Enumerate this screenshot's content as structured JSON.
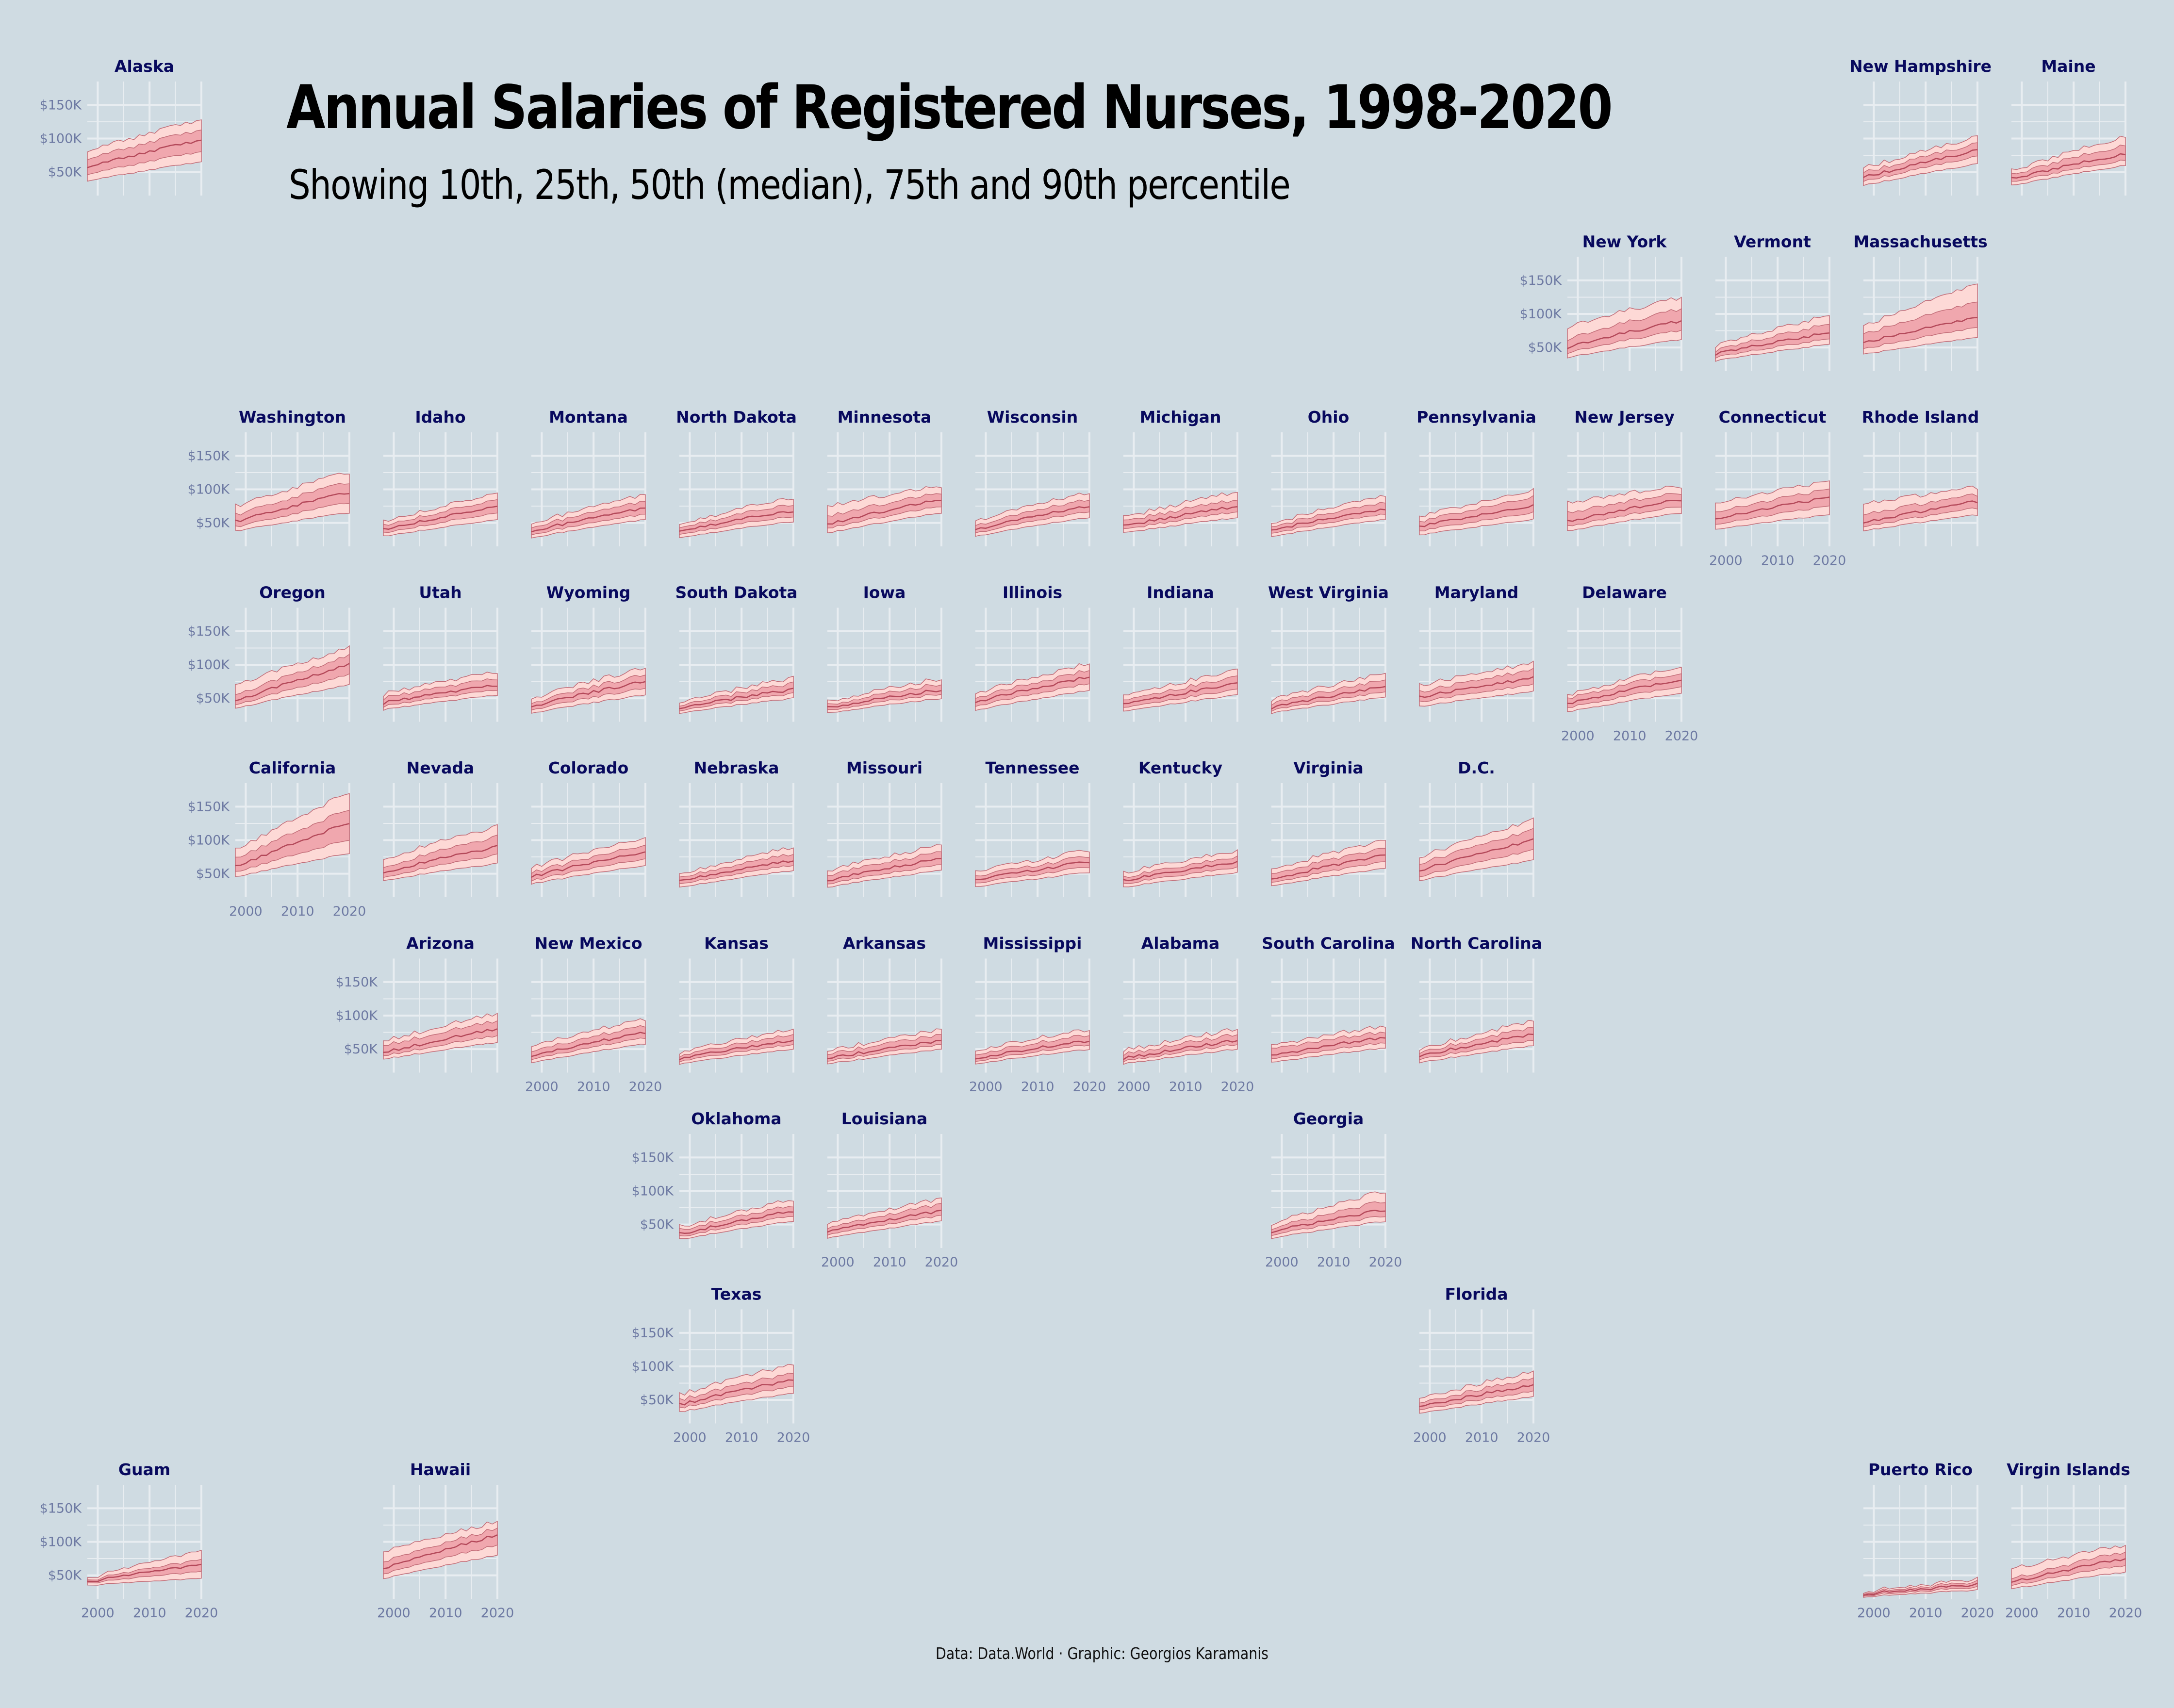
{
  "title": "Annual Salaries of Registered Nurses, 1998-2020",
  "subtitle": "Showing 10th, 25th, 50th (median), 75th and 90th percentile",
  "caption": "Data: Data.World · Graphic: Georgios Karamanis",
  "colors": {
    "background": "#cfdbe2",
    "outer_band": "#fdd9d6",
    "inner_band": "#f0a7ae",
    "band_outline": "#c26d78",
    "median_line": "#b4495a",
    "grid": "#e8edf1",
    "title_text": "#000000",
    "state_label": "#08095e",
    "tick_label": "#6e7aa3"
  },
  "chart_data": {
    "type": "area",
    "layout": "small multiples arranged as a tile map of US states and territories",
    "x_range": [
      1998,
      2020
    ],
    "y_range": [
      15000,
      185000
    ],
    "x_ticks": [
      2000,
      2010,
      2020
    ],
    "x_tick_labels": [
      "2000",
      "2010",
      "2020"
    ],
    "y_ticks": [
      50000,
      100000,
      150000
    ],
    "y_tick_labels": [
      "$50K",
      "$100K",
      "$150K"
    ],
    "grid": true,
    "series_order": [
      "p10",
      "p25",
      "p50",
      "p75",
      "p90"
    ],
    "panels": [
      {
        "state": "Alaska",
        "col": 0,
        "row": 0,
        "show_y": true,
        "show_x": false,
        "start": [
          37,
          47,
          58,
          70,
          82
        ],
        "end": [
          65,
          80,
          97,
          112,
          127
        ]
      },
      {
        "state": "New Hampshire",
        "col": 12,
        "row": 0,
        "show_y": false,
        "show_x": false,
        "start": [
          30,
          36,
          42,
          49,
          56
        ],
        "end": [
          62,
          73,
          82,
          92,
          102
        ]
      },
      {
        "state": "Maine",
        "col": 13,
        "row": 0,
        "show_y": false,
        "show_x": false,
        "start": [
          30,
          35,
          40,
          46,
          52
        ],
        "end": [
          60,
          68,
          77,
          90,
          103
        ]
      },
      {
        "state": "New York",
        "col": 10,
        "row": 1,
        "show_y": true,
        "show_x": false,
        "start": [
          35,
          42,
          50,
          62,
          80
        ],
        "end": [
          62,
          76,
          90,
          108,
          125
        ]
      },
      {
        "state": "Vermont",
        "col": 11,
        "row": 1,
        "show_y": false,
        "show_x": false,
        "start": [
          30,
          35,
          40,
          45,
          52
        ],
        "end": [
          55,
          63,
          72,
          85,
          98
        ]
      },
      {
        "state": "Massachusetts",
        "col": 12,
        "row": 1,
        "show_y": false,
        "show_x": false,
        "start": [
          40,
          48,
          57,
          70,
          82
        ],
        "end": [
          65,
          80,
          95,
          118,
          145
        ]
      },
      {
        "state": "Washington",
        "col": 1,
        "row": 2,
        "show_y": true,
        "show_x": false,
        "start": [
          38,
          44,
          52,
          62,
          75
        ],
        "end": [
          65,
          80,
          95,
          110,
          125
        ]
      },
      {
        "state": "Idaho",
        "col": 2,
        "row": 2,
        "show_y": false,
        "show_x": false,
        "start": [
          30,
          35,
          40,
          46,
          52
        ],
        "end": [
          55,
          65,
          75,
          85,
          95
        ]
      },
      {
        "state": "Montana",
        "col": 3,
        "row": 2,
        "show_y": false,
        "show_x": false,
        "start": [
          28,
          33,
          38,
          44,
          50
        ],
        "end": [
          55,
          63,
          72,
          82,
          92
        ]
      },
      {
        "state": "North Dakota",
        "col": 4,
        "row": 2,
        "show_y": false,
        "show_x": false,
        "start": [
          28,
          33,
          38,
          43,
          48
        ],
        "end": [
          52,
          60,
          68,
          78,
          88
        ]
      },
      {
        "state": "Minnesota",
        "col": 5,
        "row": 2,
        "show_y": false,
        "show_x": false,
        "start": [
          35,
          42,
          48,
          60,
          75
        ],
        "end": [
          65,
          75,
          85,
          95,
          105
        ]
      },
      {
        "state": "Wisconsin",
        "col": 6,
        "row": 2,
        "show_y": false,
        "show_x": false,
        "start": [
          30,
          35,
          40,
          46,
          53
        ],
        "end": [
          58,
          67,
          75,
          85,
          95
        ]
      },
      {
        "state": "Michigan",
        "col": 7,
        "row": 2,
        "show_y": false,
        "show_x": false,
        "start": [
          35,
          40,
          45,
          52,
          58
        ],
        "end": [
          58,
          67,
          75,
          85,
          97
        ]
      },
      {
        "state": "Ohio",
        "col": 8,
        "row": 2,
        "show_y": false,
        "show_x": false,
        "start": [
          30,
          35,
          40,
          45,
          50
        ],
        "end": [
          55,
          63,
          70,
          80,
          90
        ]
      },
      {
        "state": "Pennsylvania",
        "col": 9,
        "row": 2,
        "show_y": false,
        "show_x": false,
        "start": [
          32,
          38,
          45,
          52,
          60
        ],
        "end": [
          55,
          65,
          75,
          88,
          98
        ]
      },
      {
        "state": "New Jersey",
        "col": 10,
        "row": 2,
        "show_y": false,
        "show_x": false,
        "start": [
          38,
          45,
          52,
          65,
          80
        ],
        "end": [
          65,
          75,
          85,
          95,
          105
        ]
      },
      {
        "state": "Connecticut",
        "col": 11,
        "row": 2,
        "show_y": false,
        "show_x": true,
        "start": [
          40,
          47,
          55,
          65,
          78
        ],
        "end": [
          62,
          75,
          88,
          100,
          112
        ]
      },
      {
        "state": "Rhode Island",
        "col": 12,
        "row": 2,
        "show_y": false,
        "show_x": false,
        "start": [
          38,
          44,
          50,
          62,
          78
        ],
        "end": [
          62,
          72,
          82,
          92,
          103
        ]
      },
      {
        "state": "Oregon",
        "col": 1,
        "row": 3,
        "show_y": true,
        "show_x": false,
        "start": [
          35,
          40,
          46,
          55,
          70
        ],
        "end": [
          70,
          85,
          100,
          113,
          125
        ]
      },
      {
        "state": "Utah",
        "col": 2,
        "row": 3,
        "show_y": false,
        "show_x": false,
        "start": [
          33,
          38,
          43,
          50,
          56
        ],
        "end": [
          55,
          63,
          70,
          80,
          90
        ]
      },
      {
        "state": "Wyoming",
        "col": 3,
        "row": 3,
        "show_y": false,
        "show_x": false,
        "start": [
          28,
          33,
          38,
          43,
          50
        ],
        "end": [
          55,
          65,
          75,
          85,
          95
        ]
      },
      {
        "state": "South Dakota",
        "col": 4,
        "row": 3,
        "show_y": false,
        "show_x": false,
        "start": [
          28,
          32,
          36,
          40,
          45
        ],
        "end": [
          50,
          57,
          63,
          72,
          80
        ]
      },
      {
        "state": "Iowa",
        "col": 5,
        "row": 3,
        "show_y": false,
        "show_x": false,
        "start": [
          28,
          32,
          36,
          40,
          45
        ],
        "end": [
          50,
          57,
          63,
          72,
          80
        ]
      },
      {
        "state": "Illinois",
        "col": 6,
        "row": 3,
        "show_y": false,
        "show_x": false,
        "start": [
          32,
          38,
          44,
          50,
          57
        ],
        "end": [
          62,
          72,
          82,
          92,
          102
        ]
      },
      {
        "state": "Indiana",
        "col": 7,
        "row": 3,
        "show_y": false,
        "show_x": false,
        "start": [
          30,
          35,
          40,
          45,
          52
        ],
        "end": [
          55,
          63,
          72,
          82,
          92
        ]
      },
      {
        "state": "West Virginia",
        "col": 8,
        "row": 3,
        "show_y": false,
        "show_x": false,
        "start": [
          28,
          32,
          36,
          42,
          48
        ],
        "end": [
          52,
          60,
          68,
          78,
          88
        ]
      },
      {
        "state": "Maryland",
        "col": 9,
        "row": 3,
        "show_y": false,
        "show_x": false,
        "start": [
          38,
          45,
          52,
          60,
          70
        ],
        "end": [
          60,
          70,
          80,
          92,
          102
        ]
      },
      {
        "state": "Delaware",
        "col": 10,
        "row": 3,
        "show_y": false,
        "show_x": true,
        "start": [
          30,
          36,
          42,
          50,
          55
        ],
        "end": [
          58,
          68,
          78,
          88,
          98
        ]
      },
      {
        "state": "California",
        "col": 1,
        "row": 4,
        "show_y": true,
        "show_x": true,
        "start": [
          45,
          52,
          60,
          72,
          85
        ],
        "end": [
          80,
          100,
          125,
          145,
          170
        ]
      },
      {
        "state": "Nevada",
        "col": 2,
        "row": 4,
        "show_y": false,
        "show_x": false,
        "start": [
          40,
          45,
          52,
          60,
          72
        ],
        "end": [
          65,
          78,
          90,
          105,
          120
        ]
      },
      {
        "state": "Colorado",
        "col": 3,
        "row": 4,
        "show_y": false,
        "show_x": false,
        "start": [
          35,
          40,
          46,
          52,
          60
        ],
        "end": [
          62,
          72,
          82,
          92,
          103
        ]
      },
      {
        "state": "Nebraska",
        "col": 4,
        "row": 4,
        "show_y": false,
        "show_x": false,
        "start": [
          30,
          35,
          40,
          45,
          50
        ],
        "end": [
          55,
          63,
          70,
          80,
          90
        ]
      },
      {
        "state": "Missouri",
        "col": 5,
        "row": 4,
        "show_y": false,
        "show_x": false,
        "start": [
          30,
          35,
          40,
          48,
          55
        ],
        "end": [
          55,
          63,
          72,
          82,
          92
        ]
      },
      {
        "state": "Tennessee",
        "col": 6,
        "row": 4,
        "show_y": false,
        "show_x": false,
        "start": [
          30,
          35,
          40,
          45,
          52
        ],
        "end": [
          52,
          60,
          68,
          76,
          85
        ]
      },
      {
        "state": "Kentucky",
        "col": 7,
        "row": 4,
        "show_y": false,
        "show_x": false,
        "start": [
          30,
          35,
          40,
          45,
          52
        ],
        "end": [
          52,
          60,
          68,
          76,
          85
        ]
      },
      {
        "state": "Virginia",
        "col": 8,
        "row": 4,
        "show_y": false,
        "show_x": false,
        "start": [
          32,
          37,
          42,
          50,
          57
        ],
        "end": [
          58,
          68,
          78,
          88,
          100
        ]
      },
      {
        "state": "D.C.",
        "col": 9,
        "row": 4,
        "show_y": false,
        "show_x": false,
        "start": [
          40,
          46,
          55,
          65,
          75
        ],
        "end": [
          70,
          85,
          100,
          115,
          130
        ]
      },
      {
        "state": "Arizona",
        "col": 2,
        "row": 5,
        "show_y": true,
        "show_x": false,
        "start": [
          35,
          40,
          45,
          55,
          62
        ],
        "end": [
          60,
          70,
          80,
          92,
          103
        ]
      },
      {
        "state": "New Mexico",
        "col": 3,
        "row": 5,
        "show_y": false,
        "show_x": true,
        "start": [
          30,
          35,
          40,
          47,
          55
        ],
        "end": [
          58,
          67,
          75,
          85,
          95
        ]
      },
      {
        "state": "Kansas",
        "col": 4,
        "row": 5,
        "show_y": false,
        "show_x": false,
        "start": [
          28,
          32,
          36,
          40,
          45
        ],
        "end": [
          50,
          57,
          63,
          72,
          80
        ]
      },
      {
        "state": "Arkansas",
        "col": 5,
        "row": 5,
        "show_y": false,
        "show_x": false,
        "start": [
          28,
          32,
          36,
          42,
          47
        ],
        "end": [
          50,
          57,
          63,
          72,
          80
        ]
      },
      {
        "state": "Mississippi",
        "col": 6,
        "row": 5,
        "show_y": false,
        "show_x": true,
        "start": [
          28,
          32,
          36,
          42,
          48
        ],
        "end": [
          50,
          57,
          63,
          72,
          80
        ]
      },
      {
        "state": "Alabama",
        "col": 7,
        "row": 5,
        "show_y": false,
        "show_x": true,
        "start": [
          28,
          32,
          36,
          42,
          48
        ],
        "end": [
          50,
          57,
          63,
          72,
          80
        ]
      },
      {
        "state": "South Carolina",
        "col": 8,
        "row": 5,
        "show_y": false,
        "show_x": false,
        "start": [
          30,
          35,
          40,
          50,
          55
        ],
        "end": [
          52,
          60,
          68,
          76,
          85
        ]
      },
      {
        "state": "North Carolina",
        "col": 9,
        "row": 5,
        "show_y": false,
        "show_x": false,
        "start": [
          30,
          35,
          40,
          45,
          50
        ],
        "end": [
          55,
          63,
          72,
          82,
          92
        ]
      },
      {
        "state": "Oklahoma",
        "col": 4,
        "row": 6,
        "show_y": true,
        "show_x": false,
        "start": [
          28,
          32,
          36,
          42,
          47
        ],
        "end": [
          55,
          63,
          70,
          78,
          87
        ]
      },
      {
        "state": "Louisiana",
        "col": 5,
        "row": 6,
        "show_y": false,
        "show_x": true,
        "start": [
          30,
          35,
          40,
          45,
          52
        ],
        "end": [
          55,
          63,
          70,
          80,
          88
        ]
      },
      {
        "state": "Georgia",
        "col": 8,
        "row": 6,
        "show_y": false,
        "show_x": true,
        "start": [
          30,
          35,
          40,
          45,
          52
        ],
        "end": [
          55,
          63,
          72,
          85,
          100
        ]
      },
      {
        "state": "Texas",
        "col": 4,
        "row": 7,
        "show_y": true,
        "show_x": true,
        "start": [
          32,
          38,
          43,
          50,
          58
        ],
        "end": [
          60,
          70,
          80,
          90,
          103
        ]
      },
      {
        "state": "Florida",
        "col": 9,
        "row": 7,
        "show_y": false,
        "show_x": true,
        "start": [
          30,
          35,
          40,
          45,
          52
        ],
        "end": [
          55,
          63,
          72,
          82,
          92
        ]
      },
      {
        "state": "Guam",
        "col": 0,
        "row": 8,
        "show_y": true,
        "show_x": true,
        "start": [
          35,
          38,
          40,
          42,
          45
        ],
        "end": [
          45,
          55,
          65,
          72,
          85
        ]
      },
      {
        "state": "Hawaii",
        "col": 2,
        "row": 8,
        "show_y": false,
        "show_x": true,
        "start": [
          45,
          52,
          60,
          70,
          85
        ],
        "end": [
          80,
          95,
          110,
          120,
          130
        ]
      },
      {
        "state": "Puerto Rico",
        "col": 12,
        "row": 8,
        "show_y": false,
        "show_x": true,
        "start": [
          18,
          20,
          22,
          24,
          26
        ],
        "end": [
          28,
          32,
          36,
          40,
          44
        ]
      },
      {
        "state": "Virgin Islands",
        "col": 13,
        "row": 8,
        "show_y": false,
        "show_x": true,
        "start": [
          30,
          35,
          40,
          45,
          60
        ],
        "end": [
          55,
          65,
          75,
          85,
          95
        ]
      }
    ]
  }
}
